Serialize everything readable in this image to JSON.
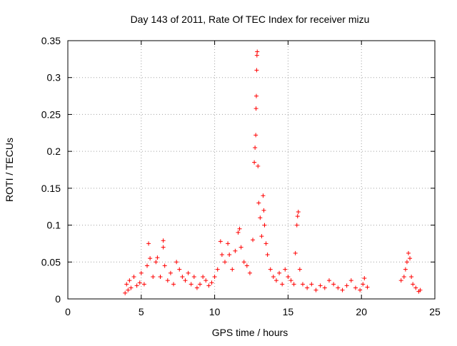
{
  "chart_data": {
    "type": "scatter",
    "title": "Day 143 of 2011, Rate Of TEC Index for receiver mizu",
    "xlabel": "GPS time / hours",
    "ylabel": "ROTI / TECUs",
    "xlim": [
      0,
      25
    ],
    "ylim": [
      0,
      0.35
    ],
    "grid": true,
    "marker": "+",
    "marker_color": "#ff0000",
    "x_ticks": [
      0,
      5,
      10,
      15,
      20,
      25
    ],
    "y_ticks": [
      0,
      0.05,
      0.1,
      0.15,
      0.2,
      0.25,
      0.3,
      0.35
    ],
    "x_tick_labels": [
      "0",
      "5",
      "10",
      "15",
      "20",
      "25"
    ],
    "y_tick_labels": [
      "0",
      "0.05",
      "0.1",
      "0.15",
      "0.2",
      "0.25",
      "0.3",
      "0.35"
    ],
    "points": [
      [
        3.9,
        0.008
      ],
      [
        4.0,
        0.02
      ],
      [
        4.1,
        0.012
      ],
      [
        4.2,
        0.025
      ],
      [
        4.3,
        0.015
      ],
      [
        4.5,
        0.03
      ],
      [
        4.7,
        0.018
      ],
      [
        4.9,
        0.022
      ],
      [
        5.0,
        0.035
      ],
      [
        5.2,
        0.02
      ],
      [
        5.4,
        0.045
      ],
      [
        5.5,
        0.075
      ],
      [
        5.6,
        0.055
      ],
      [
        5.8,
        0.03
      ],
      [
        6.0,
        0.05
      ],
      [
        6.1,
        0.056
      ],
      [
        6.3,
        0.03
      ],
      [
        6.5,
        0.079
      ],
      [
        6.5,
        0.07
      ],
      [
        6.6,
        0.045
      ],
      [
        6.8,
        0.025
      ],
      [
        7.0,
        0.035
      ],
      [
        7.2,
        0.02
      ],
      [
        7.4,
        0.05
      ],
      [
        7.6,
        0.04
      ],
      [
        7.8,
        0.03
      ],
      [
        8.0,
        0.025
      ],
      [
        8.2,
        0.035
      ],
      [
        8.4,
        0.02
      ],
      [
        8.6,
        0.03
      ],
      [
        8.8,
        0.015
      ],
      [
        9.0,
        0.02
      ],
      [
        9.2,
        0.03
      ],
      [
        9.4,
        0.025
      ],
      [
        9.6,
        0.018
      ],
      [
        9.8,
        0.022
      ],
      [
        10.0,
        0.03
      ],
      [
        10.2,
        0.04
      ],
      [
        10.4,
        0.078
      ],
      [
        10.5,
        0.06
      ],
      [
        10.7,
        0.05
      ],
      [
        10.9,
        0.075
      ],
      [
        11.0,
        0.06
      ],
      [
        11.2,
        0.04
      ],
      [
        11.4,
        0.065
      ],
      [
        11.6,
        0.09
      ],
      [
        11.7,
        0.095
      ],
      [
        11.8,
        0.07
      ],
      [
        12.0,
        0.05
      ],
      [
        12.2,
        0.045
      ],
      [
        12.4,
        0.035
      ],
      [
        12.6,
        0.08
      ],
      [
        12.7,
        0.185
      ],
      [
        12.75,
        0.205
      ],
      [
        12.8,
        0.222
      ],
      [
        12.82,
        0.258
      ],
      [
        12.84,
        0.275
      ],
      [
        12.86,
        0.31
      ],
      [
        12.88,
        0.33
      ],
      [
        12.9,
        0.335
      ],
      [
        12.95,
        0.18
      ],
      [
        13.0,
        0.13
      ],
      [
        13.1,
        0.11
      ],
      [
        13.2,
        0.085
      ],
      [
        13.3,
        0.14
      ],
      [
        13.35,
        0.12
      ],
      [
        13.4,
        0.1
      ],
      [
        13.5,
        0.075
      ],
      [
        13.6,
        0.06
      ],
      [
        13.8,
        0.04
      ],
      [
        14.0,
        0.03
      ],
      [
        14.2,
        0.025
      ],
      [
        14.4,
        0.035
      ],
      [
        14.6,
        0.02
      ],
      [
        14.8,
        0.04
      ],
      [
        15.0,
        0.03
      ],
      [
        15.2,
        0.025
      ],
      [
        15.4,
        0.02
      ],
      [
        15.5,
        0.062
      ],
      [
        15.6,
        0.1
      ],
      [
        15.65,
        0.112
      ],
      [
        15.7,
        0.118
      ],
      [
        15.8,
        0.04
      ],
      [
        16.0,
        0.02
      ],
      [
        16.3,
        0.015
      ],
      [
        16.6,
        0.02
      ],
      [
        16.9,
        0.012
      ],
      [
        17.2,
        0.018
      ],
      [
        17.5,
        0.015
      ],
      [
        17.8,
        0.025
      ],
      [
        18.1,
        0.02
      ],
      [
        18.4,
        0.015
      ],
      [
        18.7,
        0.012
      ],
      [
        19.0,
        0.018
      ],
      [
        19.3,
        0.025
      ],
      [
        19.6,
        0.015
      ],
      [
        19.9,
        0.012
      ],
      [
        20.1,
        0.02
      ],
      [
        20.2,
        0.028
      ],
      [
        20.4,
        0.016
      ],
      [
        22.7,
        0.025
      ],
      [
        22.9,
        0.03
      ],
      [
        23.0,
        0.04
      ],
      [
        23.1,
        0.05
      ],
      [
        23.2,
        0.062
      ],
      [
        23.3,
        0.055
      ],
      [
        23.4,
        0.03
      ],
      [
        23.5,
        0.02
      ],
      [
        23.7,
        0.015
      ],
      [
        23.9,
        0.01
      ],
      [
        24.0,
        0.012
      ]
    ]
  }
}
